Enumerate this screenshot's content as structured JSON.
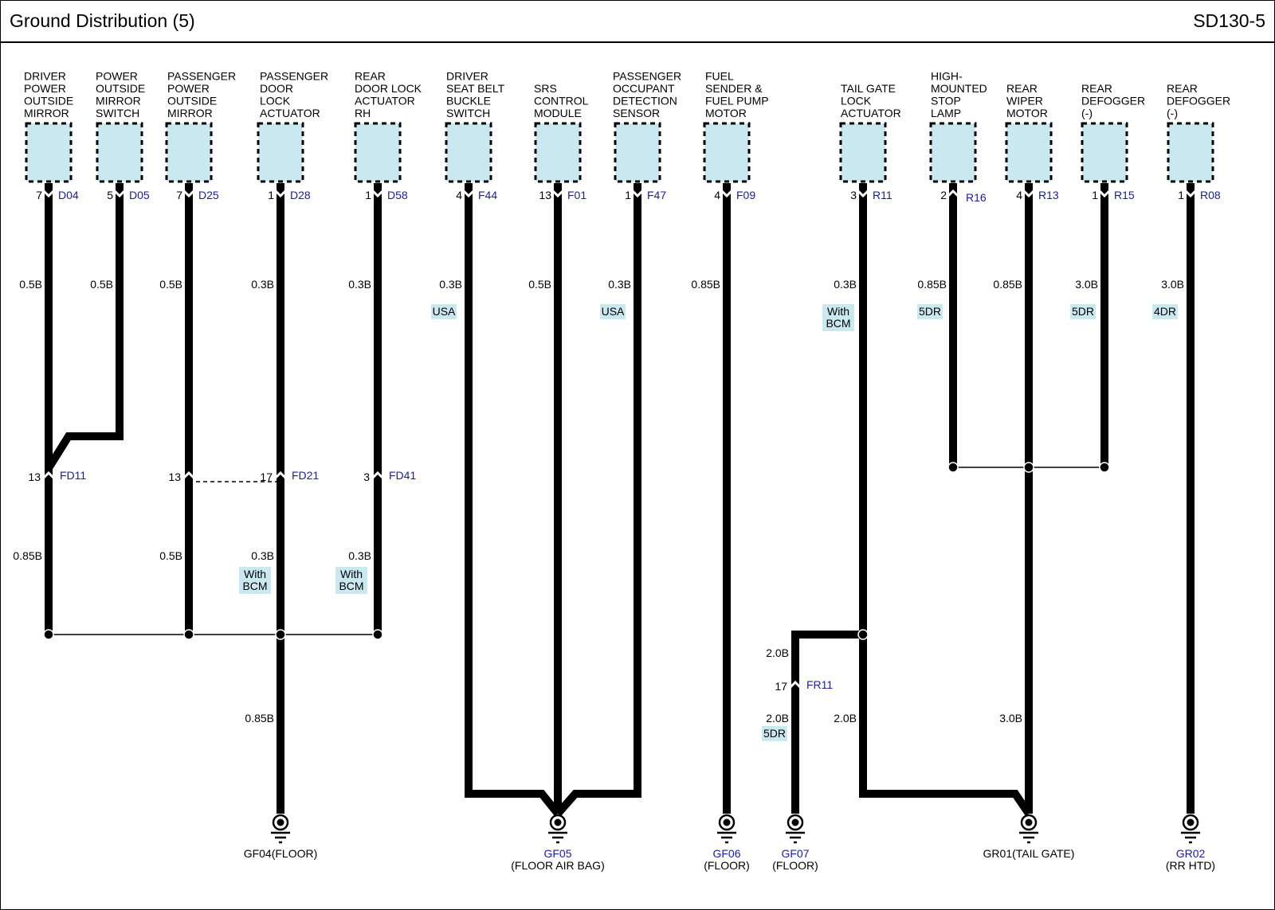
{
  "header": {
    "title": "Ground Distribution (5)",
    "code": "SD130-5"
  },
  "colors": {
    "component_fill": "#c9e8f0",
    "connector_id": "#1a1aa8",
    "option_fill": "#c9e8f0",
    "wire": "#000000"
  },
  "components": [
    {
      "label": [
        "DRIVER",
        "POWER",
        "OUTSIDE",
        "MIRROR"
      ],
      "pin": "7",
      "connector": "D04",
      "gauge": "0.5B",
      "option": []
    },
    {
      "label": [
        "POWER",
        "OUTSIDE",
        "MIRROR",
        "SWITCH"
      ],
      "pin": "5",
      "connector": "D05",
      "gauge": "0.5B",
      "option": []
    },
    {
      "label": [
        "PASSENGER",
        "POWER",
        "OUTSIDE",
        "MIRROR"
      ],
      "pin": "7",
      "connector": "D25",
      "gauge": "0.5B",
      "option": []
    },
    {
      "label": [
        "PASSENGER",
        "DOOR",
        "LOCK",
        "ACTUATOR"
      ],
      "pin": "1",
      "connector": "D28",
      "gauge": "0.3B",
      "option": []
    },
    {
      "label": [
        "REAR",
        "DOOR LOCK",
        "ACTUATOR",
        "RH"
      ],
      "pin": "1",
      "connector": "D58",
      "gauge": "0.3B",
      "option": []
    },
    {
      "label": [
        "DRIVER",
        "SEAT BELT",
        "BUCKLE",
        "SWITCH"
      ],
      "pin": "4",
      "connector": "F44",
      "gauge": "0.3B",
      "option": [
        "USA"
      ]
    },
    {
      "label": [
        "SRS",
        "CONTROL",
        "MODULE"
      ],
      "pin": "13",
      "connector": "F01",
      "gauge": "0.5B",
      "option": []
    },
    {
      "label": [
        "PASSENGER",
        "OCCUPANT",
        "DETECTION",
        "SENSOR"
      ],
      "pin": "1",
      "connector": "F47",
      "gauge": "0.3B",
      "option": [
        "USA"
      ]
    },
    {
      "label": [
        "FUEL",
        "SENDER &",
        "FUEL PUMP",
        "MOTOR"
      ],
      "pin": "4",
      "connector": "F09",
      "gauge": "0.85B",
      "option": []
    },
    {
      "label": [
        "TAIL GATE",
        "LOCK",
        "ACTUATOR"
      ],
      "pin": "3",
      "connector": "R11",
      "gauge": "0.3B",
      "option": [
        "With",
        "BCM"
      ]
    },
    {
      "label": [
        "HIGH-",
        "MOUNTED",
        "STOP",
        "LAMP"
      ],
      "pin": "2",
      "connector": "R16",
      "gauge": "0.85B",
      "option": [
        "5DR"
      ]
    },
    {
      "label": [
        "REAR",
        "WIPER",
        "MOTOR"
      ],
      "pin": "4",
      "connector": "R13",
      "gauge": "0.85B",
      "option": []
    },
    {
      "label": [
        "REAR",
        "DEFOGGER",
        "(-)"
      ],
      "pin": "1",
      "connector": "R15",
      "gauge": "3.0B",
      "option": [
        "5DR"
      ]
    },
    {
      "label": [
        "REAR",
        "DEFOGGER",
        "(-)"
      ],
      "pin": "1",
      "connector": "R08",
      "gauge": "3.0B",
      "option": [
        "4DR"
      ]
    }
  ],
  "inline_connectors": [
    {
      "pin": "13",
      "id": "FD11"
    },
    {
      "pin": "13",
      "id": ""
    },
    {
      "pin": "17",
      "id": "FD21"
    },
    {
      "pin": "3",
      "id": "FD41"
    },
    {
      "pin": "17",
      "id": "FR11"
    }
  ],
  "lower_gauges": [
    "0.85B",
    "0.5B",
    "0.3B",
    "0.3B",
    "0.85B",
    "2.0B",
    "2.0B",
    "2.0B",
    "3.0B"
  ],
  "lower_options": [
    [
      "With",
      "BCM"
    ],
    [
      "With",
      "BCM"
    ],
    [
      "5DR"
    ]
  ],
  "grounds": [
    {
      "id": "GF04",
      "location": "(FLOOR)"
    },
    {
      "id": "GF05",
      "location": "(FLOOR AIR BAG)"
    },
    {
      "id": "GF06",
      "location": "(FLOOR)"
    },
    {
      "id": "GF07",
      "location": "(FLOOR)"
    },
    {
      "id": "GR01",
      "location": "(TAIL GATE)"
    },
    {
      "id": "GR02",
      "location": "(RR HTD)"
    }
  ]
}
